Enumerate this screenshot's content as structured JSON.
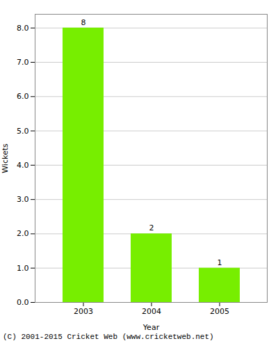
{
  "chart_data": {
    "type": "bar",
    "categories": [
      "2003",
      "2004",
      "2005"
    ],
    "values": [
      8,
      2,
      1
    ],
    "color": "#77ee00",
    "xlabel": "Year",
    "ylabel": "Wickets",
    "ylim": [
      0,
      8.4
    ],
    "yticks": [
      {
        "value": 0,
        "label": "0.0"
      },
      {
        "value": 1,
        "label": "1.0"
      },
      {
        "value": 2,
        "label": "2.0"
      },
      {
        "value": 3,
        "label": "3.0"
      },
      {
        "value": 4,
        "label": "4.0"
      },
      {
        "value": 5,
        "label": "5.0"
      },
      {
        "value": 6,
        "label": "6.0"
      },
      {
        "value": 7,
        "label": "7.0"
      },
      {
        "value": 8,
        "label": "8.0"
      }
    ],
    "grid": true,
    "data_labels": true,
    "annotations": [
      "(C) 2001-2015 Cricket Web (www.cricketweb.net)"
    ]
  }
}
